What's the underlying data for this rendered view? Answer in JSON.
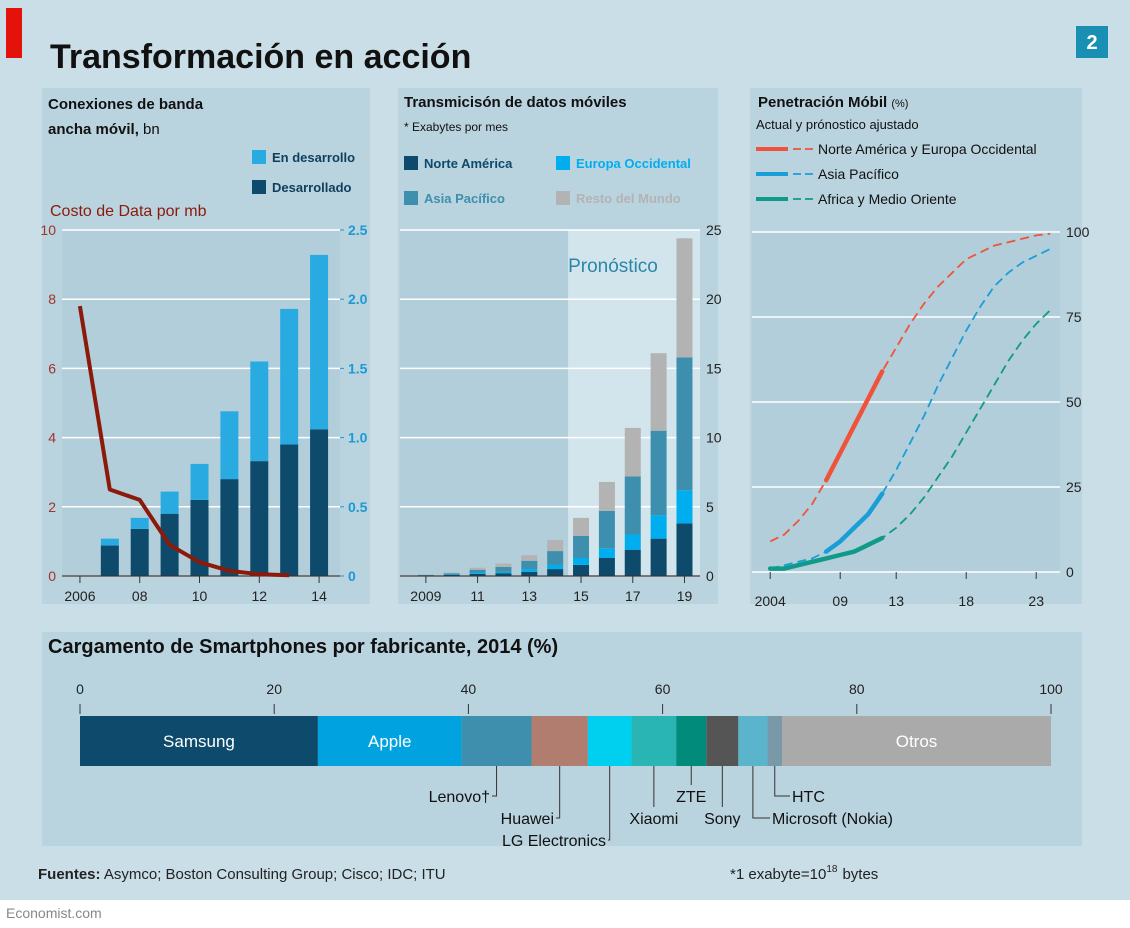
{
  "header": {
    "title": "Transformación en acción",
    "badge": "2"
  },
  "chart_data": [
    {
      "type": "bar",
      "title": "Conexiones de banda ancha móvil,",
      "unit": "bn",
      "x": [
        2006,
        2007,
        2008,
        2009,
        2010,
        2011,
        2012,
        2013,
        2014
      ],
      "xlim": [
        2005.4,
        2014.7
      ],
      "xticks": [
        2006,
        {
          "value": 2008,
          "label": "08"
        },
        {
          "value": 2010,
          "label": "10"
        },
        {
          "value": 2012,
          "label": "12"
        },
        {
          "value": 2014,
          "label": "14"
        }
      ],
      "ylim": [
        0,
        10
      ],
      "yticks": [
        0,
        2,
        4,
        6,
        8,
        10
      ],
      "y2lim": [
        0,
        2.5
      ],
      "y2ticks": [
        0,
        0.5,
        {
          "value": 1,
          "label": "1.0"
        },
        1.5,
        {
          "value": 2,
          "label": "2.0"
        },
        2.5
      ],
      "grid": true,
      "stacked": true,
      "series": [
        {
          "name": "Desarrollado",
          "color": "#0d4a6b",
          "axis": "y2",
          "values": [
            null,
            0.22,
            0.34,
            0.45,
            0.55,
            0.7,
            0.83,
            0.95,
            1.06
          ]
        },
        {
          "name": "En desarrollo",
          "color": "#29abe2",
          "axis": "y2",
          "values": [
            null,
            0.05,
            0.08,
            0.16,
            0.26,
            0.49,
            0.72,
            0.98,
            1.26
          ]
        },
        {
          "name": "Costo de Data por mb",
          "color": "#8b1a0a",
          "type": "line",
          "values": [
            7.8,
            2.5,
            2.2,
            0.9,
            0.4,
            0.15,
            0.05,
            0.02,
            null
          ]
        }
      ]
    },
    {
      "type": "bar",
      "title": "Transmicisón de datos móviles",
      "subtitle": "* Exabytes por mes",
      "x": [
        2009,
        2010,
        2011,
        2012,
        2013,
        2014,
        2015,
        2016,
        2017,
        2018,
        2019
      ],
      "xlim": [
        2008,
        2019.6
      ],
      "xticks": [
        2009,
        {
          "value": 2011,
          "label": "11"
        },
        {
          "value": 2013,
          "label": "13"
        },
        {
          "value": 2015,
          "label": "15"
        },
        {
          "value": 2017,
          "label": "17"
        },
        {
          "value": 2019,
          "label": "19"
        }
      ],
      "ylim": [
        0,
        25
      ],
      "yticks": [
        0,
        5,
        10,
        15,
        20,
        25
      ],
      "grid": true,
      "stacked": true,
      "forecast": {
        "label": "Pronóstico",
        "start": 2014.5
      },
      "series": [
        {
          "name": "Norte América",
          "color": "#0d4a6b",
          "values": [
            0.03,
            0.07,
            0.15,
            0.2,
            0.3,
            0.5,
            0.8,
            1.3,
            1.9,
            2.7,
            3.8
          ]
        },
        {
          "name": "Europa Occidental",
          "color": "#00aeef",
          "values": [
            0.02,
            0.04,
            0.1,
            0.1,
            0.2,
            0.3,
            0.5,
            0.7,
            1.1,
            1.7,
            2.4
          ]
        },
        {
          "name": "Asia Pacífico",
          "color": "#3d8fad",
          "values": [
            0.03,
            0.08,
            0.2,
            0.35,
            0.6,
            1.0,
            1.6,
            2.7,
            4.2,
            6.1,
            9.6
          ]
        },
        {
          "name": "Resto del Mundo",
          "color": "#b3b3b3",
          "values": [
            0.02,
            0.06,
            0.15,
            0.25,
            0.4,
            0.8,
            1.3,
            2.1,
            3.5,
            5.6,
            8.6
          ]
        }
      ]
    },
    {
      "type": "line",
      "title": "Penetración Móbil",
      "unit": "(%)",
      "subtitle": "Actual y prónostico ajustado",
      "x": [
        2004,
        2005,
        2006,
        2007,
        2008,
        2009,
        2010,
        2011,
        2012,
        2013,
        2014,
        2015,
        2016,
        2017,
        2018,
        2019,
        2020,
        2021,
        2022,
        2023,
        2024
      ],
      "xlim": [
        2002.7,
        2024.7
      ],
      "xticks": [
        2004,
        {
          "value": 2009,
          "label": "09"
        },
        {
          "value": 2013,
          "label": "13"
        },
        {
          "value": 2018,
          "label": "18"
        },
        {
          "value": 2023,
          "label": "23"
        }
      ],
      "ylim": [
        0,
        100
      ],
      "yticks": [
        0,
        25,
        50,
        75,
        100
      ],
      "grid": true,
      "series": [
        {
          "name": "Norte América y Europa Occidental",
          "color": "#f0533a",
          "values": [
            9,
            11,
            15,
            20,
            27,
            35,
            43,
            51,
            59,
            66,
            73,
            79,
            84,
            88,
            92,
            94,
            96,
            97,
            98,
            99,
            99.5
          ],
          "actual": [
            null,
            null,
            null,
            null,
            27,
            35,
            43,
            51,
            59,
            null,
            null,
            null,
            null,
            null,
            null,
            null,
            null,
            null,
            null,
            null,
            null
          ]
        },
        {
          "name": "Asia Pacífico",
          "color": "#1a9ed8",
          "values": [
            1,
            2,
            3,
            4,
            6,
            9,
            13,
            17,
            23,
            30,
            38,
            46,
            55,
            63,
            71,
            78,
            84,
            88,
            91,
            93,
            95
          ],
          "actual": [
            null,
            null,
            null,
            null,
            6,
            9,
            13,
            17,
            23,
            null,
            null,
            null,
            null,
            null,
            null,
            null,
            null,
            null,
            null,
            null,
            null
          ]
        },
        {
          "name": "Africa y Medio Oriente",
          "color": "#109a8a",
          "values": [
            1,
            1,
            2,
            3,
            4,
            5,
            6,
            8,
            10,
            13,
            17,
            22,
            28,
            34,
            41,
            48,
            55,
            62,
            68,
            73,
            77
          ],
          "actual": [
            1,
            1,
            2,
            3,
            4,
            5,
            6,
            8,
            10,
            null,
            null,
            null,
            null,
            null,
            null,
            null,
            null,
            null,
            null,
            null,
            null
          ]
        }
      ]
    },
    {
      "type": "bar",
      "orientation": "horizontal",
      "stacked": true,
      "title": "Cargamento de Smartphones por fabricante, 2014 (%)",
      "categories": [
        "Samsung",
        "Apple",
        "Lenovo†",
        "Huawei",
        "LG Electronics",
        "Xiaomi",
        "ZTE",
        "Sony",
        "Microsoft (Nokia)",
        "HTC",
        "Otros"
      ],
      "values": [
        24.5,
        14.8,
        7.2,
        5.8,
        4.5,
        4.6,
        3.1,
        3.3,
        3.0,
        1.5,
        27.7
      ],
      "colors": [
        "#0d4a6b",
        "#00a3e0",
        "#3d8fad",
        "#b07d6e",
        "#00d0f0",
        "#2ab5b5",
        "#008b7a",
        "#555555",
        "#5ab4cc",
        "#7a99a8",
        "#aaaaaa"
      ],
      "xlim": [
        0,
        100
      ],
      "xticks": [
        0,
        20,
        40,
        60,
        80,
        100
      ]
    }
  ],
  "footer": {
    "sources_label": "Fuentes:",
    "sources": "Asymco; Boston Consulting Group; Cisco; IDC; ITU",
    "note": "*1 exabyte=10",
    "note_exp": "18",
    "note_unit": "bytes",
    "credit": "Economist.com"
  }
}
